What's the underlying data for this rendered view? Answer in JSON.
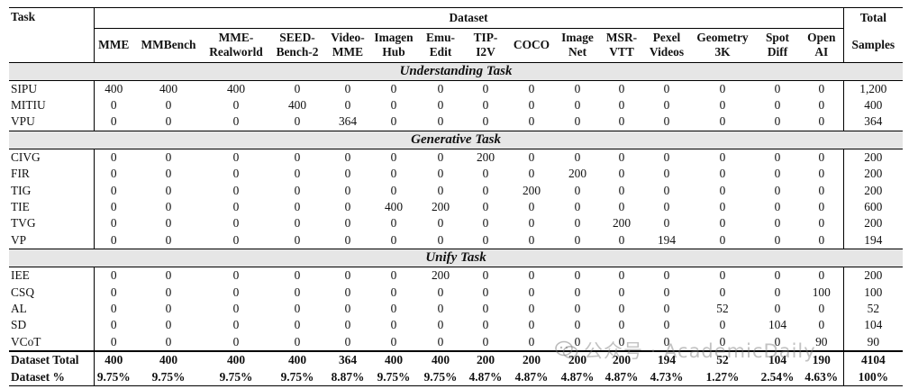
{
  "header": {
    "task": "Task",
    "dataset": "Dataset",
    "total_line1": "Total",
    "total_line2": "Samples",
    "columns": [
      [
        "MME",
        ""
      ],
      [
        "MMBench",
        ""
      ],
      [
        "MME-",
        "Realworld"
      ],
      [
        "SEED-",
        "Bench-2"
      ],
      [
        "Video-",
        "MME"
      ],
      [
        "Imagen",
        "Hub"
      ],
      [
        "Emu-",
        "Edit"
      ],
      [
        "TIP-",
        "I2V"
      ],
      [
        "COCO",
        ""
      ],
      [
        "Image",
        "Net"
      ],
      [
        "MSR-",
        "VTT"
      ],
      [
        "Pexel",
        "Videos"
      ],
      [
        "Geometry",
        "3K"
      ],
      [
        "Spot",
        "Diff"
      ],
      [
        "Open",
        "AI"
      ]
    ]
  },
  "sections": [
    {
      "title": "Understanding Task",
      "rows": [
        {
          "task": "SIPU",
          "values": [
            "400",
            "400",
            "400",
            "0",
            "0",
            "0",
            "0",
            "0",
            "0",
            "0",
            "0",
            "0",
            "0",
            "0",
            "0"
          ],
          "total": "1,200"
        },
        {
          "task": "MITIU",
          "values": [
            "0",
            "0",
            "0",
            "400",
            "0",
            "0",
            "0",
            "0",
            "0",
            "0",
            "0",
            "0",
            "0",
            "0",
            "0"
          ],
          "total": "400"
        },
        {
          "task": "VPU",
          "values": [
            "0",
            "0",
            "0",
            "0",
            "364",
            "0",
            "0",
            "0",
            "0",
            "0",
            "0",
            "0",
            "0",
            "0",
            "0"
          ],
          "total": "364"
        }
      ]
    },
    {
      "title": "Generative Task",
      "rows": [
        {
          "task": "CIVG",
          "values": [
            "0",
            "0",
            "0",
            "0",
            "0",
            "0",
            "0",
            "200",
            "0",
            "0",
            "0",
            "0",
            "0",
            "0",
            "0"
          ],
          "total": "200"
        },
        {
          "task": "FIR",
          "values": [
            "0",
            "0",
            "0",
            "0",
            "0",
            "0",
            "0",
            "0",
            "0",
            "200",
            "0",
            "0",
            "0",
            "0",
            "0"
          ],
          "total": "200"
        },
        {
          "task": "TIG",
          "values": [
            "0",
            "0",
            "0",
            "0",
            "0",
            "0",
            "0",
            "0",
            "200",
            "0",
            "0",
            "0",
            "0",
            "0",
            "0"
          ],
          "total": "200"
        },
        {
          "task": "TIE",
          "values": [
            "0",
            "0",
            "0",
            "0",
            "0",
            "400",
            "200",
            "0",
            "0",
            "0",
            "0",
            "0",
            "0",
            "0",
            "0"
          ],
          "total": "600"
        },
        {
          "task": "TVG",
          "values": [
            "0",
            "0",
            "0",
            "0",
            "0",
            "0",
            "0",
            "0",
            "0",
            "0",
            "200",
            "0",
            "0",
            "0",
            "0"
          ],
          "total": "200"
        },
        {
          "task": "VP",
          "values": [
            "0",
            "0",
            "0",
            "0",
            "0",
            "0",
            "0",
            "0",
            "0",
            "0",
            "0",
            "194",
            "0",
            "0",
            "0"
          ],
          "total": "194"
        }
      ]
    },
    {
      "title": "Unify Task",
      "rows": [
        {
          "task": "IEE",
          "values": [
            "0",
            "0",
            "0",
            "0",
            "0",
            "0",
            "200",
            "0",
            "0",
            "0",
            "0",
            "0",
            "0",
            "0",
            "0"
          ],
          "total": "200"
        },
        {
          "task": "CSQ",
          "values": [
            "0",
            "0",
            "0",
            "0",
            "0",
            "0",
            "0",
            "0",
            "0",
            "0",
            "0",
            "0",
            "0",
            "0",
            "100"
          ],
          "total": "100"
        },
        {
          "task": "AL",
          "values": [
            "0",
            "0",
            "0",
            "0",
            "0",
            "0",
            "0",
            "0",
            "0",
            "0",
            "0",
            "0",
            "52",
            "0",
            "0"
          ],
          "total": "52"
        },
        {
          "task": "SD",
          "values": [
            "0",
            "0",
            "0",
            "0",
            "0",
            "0",
            "0",
            "0",
            "0",
            "0",
            "0",
            "0",
            "0",
            "104",
            "0"
          ],
          "total": "104"
        },
        {
          "task": "VCoT",
          "values": [
            "0",
            "0",
            "0",
            "0",
            "0",
            "0",
            "0",
            "0",
            "0",
            "0",
            "0",
            "0",
            "0",
            "0",
            "90"
          ],
          "total": "90"
        }
      ]
    }
  ],
  "totals": [
    {
      "task": "Dataset Total",
      "values": [
        "400",
        "400",
        "400",
        "400",
        "364",
        "400",
        "400",
        "200",
        "200",
        "200",
        "200",
        "194",
        "52",
        "104",
        "190"
      ],
      "total": "4104"
    },
    {
      "task": "Dataset %",
      "values": [
        "9.75%",
        "9.75%",
        "9.75%",
        "9.75%",
        "8.87%",
        "9.75%",
        "9.75%",
        "4.87%",
        "4.87%",
        "4.87%",
        "4.87%",
        "4.73%",
        "1.27%",
        "2.54%",
        "4.63%"
      ],
      "total": "100%"
    }
  ],
  "watermark": {
    "text": "公众号 · AcademicDaily",
    "icon": "wechat-icon"
  }
}
